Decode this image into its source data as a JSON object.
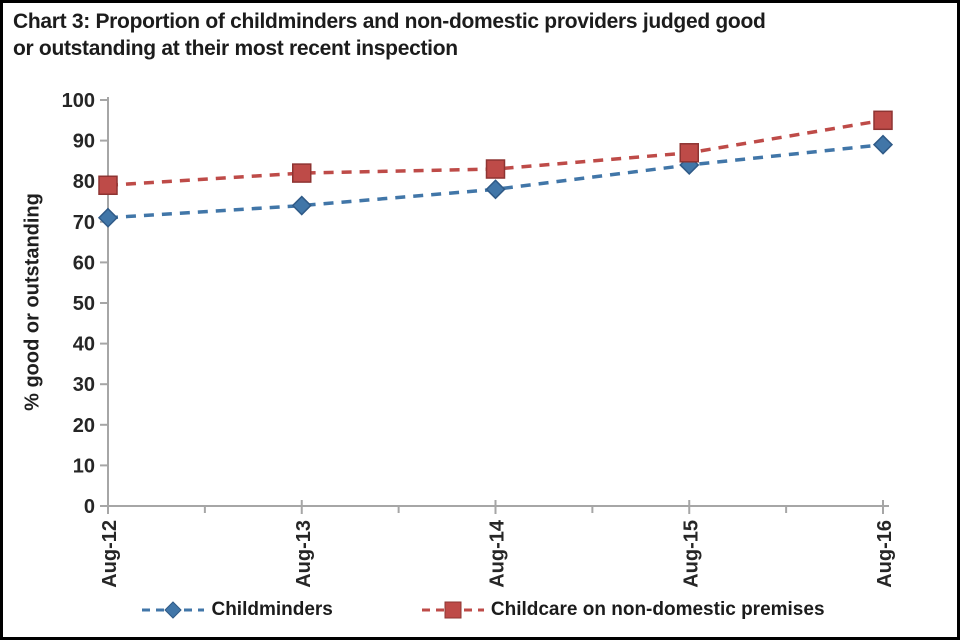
{
  "title": {
    "line1": "Chart 3: Proportion of childminders and non-domestic providers judged good",
    "line2": "or outstanding at their most recent inspection"
  },
  "chart_data": {
    "type": "line",
    "title": "Chart 3: Proportion of childminders and non-domestic providers judged good or outstanding at their most recent inspection",
    "categories": [
      "Aug-12",
      "Aug-13",
      "Aug-14",
      "Aug-15",
      "Aug-16"
    ],
    "series": [
      {
        "name": "Childminders",
        "values": [
          71,
          74,
          78,
          84,
          89
        ],
        "color": "#4176A8",
        "edge_color": "#2F5A87",
        "marker": "diamond",
        "line_style": "dashed"
      },
      {
        "name": "Childcare on non-domestic premises",
        "values": [
          79,
          82,
          83,
          87,
          95
        ],
        "color": "#BE4B48",
        "edge_color": "#8E3432",
        "marker": "square",
        "line_style": "dashed"
      }
    ],
    "xlabel": "",
    "ylabel": "% good or outstanding",
    "ylim": [
      0,
      100
    ],
    "ytick_step": 10,
    "grid": false,
    "legend_position": "bottom",
    "axis_color": "#A6A6A6",
    "tick_label_color": "#262626"
  }
}
